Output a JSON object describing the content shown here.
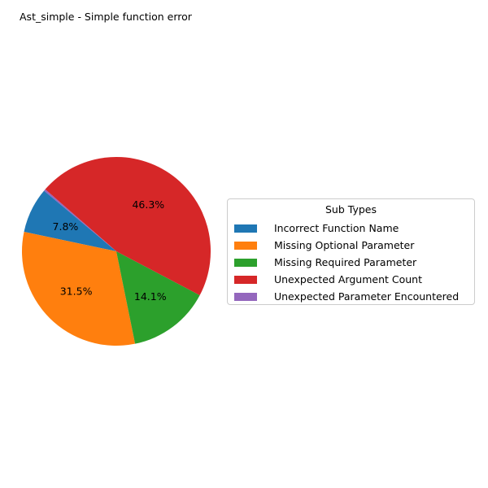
{
  "chart_data": {
    "type": "pie",
    "title": "Ast_simple - Simple function error",
    "legend_title": "Sub Types",
    "legend_position": "right",
    "start_angle_deg": 140,
    "direction": "counterclockwise",
    "slices": [
      {
        "label": "  Incorrect Function Name",
        "value": 7.8,
        "pct_label": "7.8%",
        "color": "#1f77b4"
      },
      {
        "label": "  Missing Optional Parameter",
        "value": 31.5,
        "pct_label": "31.5%",
        "color": "#ff7f0e"
      },
      {
        "label": "  Missing Required Parameter",
        "value": 14.1,
        "pct_label": "14.1%",
        "color": "#2ca02c"
      },
      {
        "label": "  Unexpected Argument Count",
        "value": 46.3,
        "pct_label": "46.3%",
        "color": "#d62728"
      },
      {
        "label": "  Unexpected Parameter Encountered",
        "value": 0.3,
        "pct_label": "",
        "color": "#9467bd"
      }
    ]
  }
}
